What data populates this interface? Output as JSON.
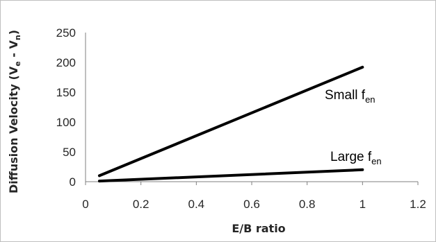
{
  "chart_data": {
    "type": "line",
    "xlabel": "E/B ratio",
    "ylabel": {
      "prefix": "Diffusion Velocity (V",
      "sub1": "e",
      "mid": " - V",
      "sub2": "n",
      "suffix": ")"
    },
    "xlim": [
      0,
      1.2
    ],
    "ylim": [
      0,
      250
    ],
    "x_ticks": [
      "0",
      "0.2",
      "0.4",
      "0.6",
      "0.8",
      "1",
      "1.2"
    ],
    "y_ticks": [
      "0",
      "50",
      "100",
      "150",
      "200",
      "250"
    ],
    "grid": false,
    "series": [
      {
        "x": [
          0.05,
          1.0
        ],
        "y": [
          10,
          192
        ],
        "label": {
          "main": "Small f",
          "sub": "en"
        }
      },
      {
        "x": [
          0.05,
          1.0
        ],
        "y": [
          1,
          20
        ],
        "label": {
          "main": "Large f",
          "sub": "en"
        }
      }
    ],
    "line_color": "#000000",
    "axis_color": "#7f7f7f"
  }
}
